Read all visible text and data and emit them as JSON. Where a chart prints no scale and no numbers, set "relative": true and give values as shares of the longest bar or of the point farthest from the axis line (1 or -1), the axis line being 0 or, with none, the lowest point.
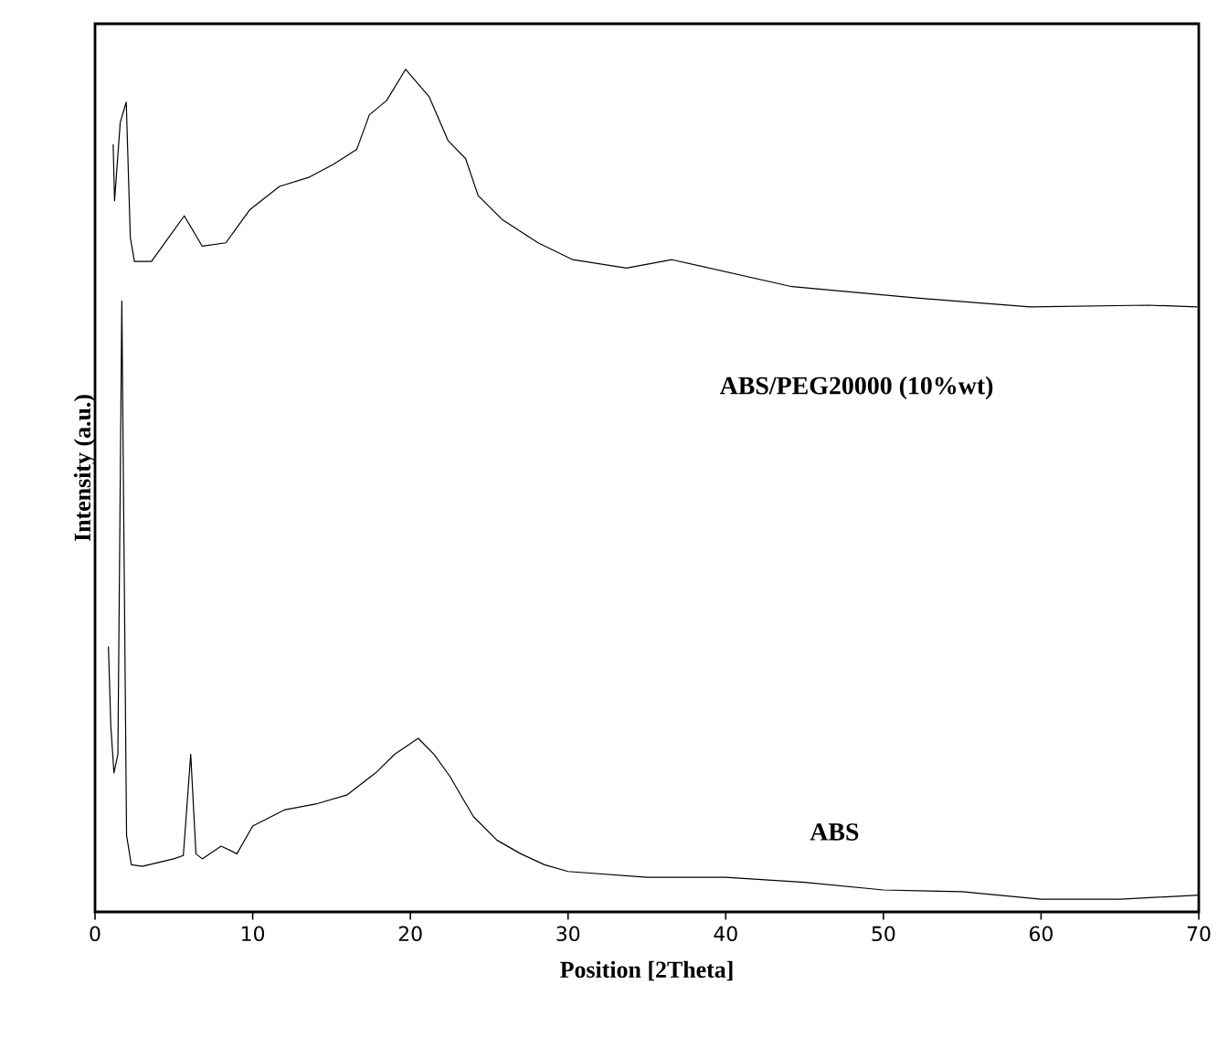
{
  "chart_data": {
    "type": "line",
    "relative": true,
    "xlabel": "Position [2Theta]",
    "ylabel": "Intensity (a.u.)",
    "xlim": [
      0,
      70
    ],
    "xticks": [
      0,
      10,
      20,
      30,
      40,
      50,
      60,
      70
    ],
    "series": [
      {
        "name": "ABS/PEG20000 (10%wt)",
        "color": "#000000",
        "x": [
          1.15,
          1.24,
          1.6,
          1.98,
          2.24,
          2.5,
          3.58,
          5.66,
          6.8,
          8.3,
          9.8,
          11.7,
          13.6,
          15.1,
          16.6,
          17.4,
          18.5,
          19.7,
          21.2,
          22.4,
          23.5,
          24.3,
          25.8,
          28.1,
          30.3,
          33.7,
          36.6,
          44.2,
          51.8,
          59.3,
          66.8,
          69.9
        ],
        "values": [
          0.911,
          0.844,
          0.937,
          0.961,
          0.8,
          0.772,
          0.772,
          0.826,
          0.79,
          0.794,
          0.833,
          0.861,
          0.872,
          0.887,
          0.905,
          0.946,
          0.963,
          1.0,
          0.967,
          0.915,
          0.894,
          0.85,
          0.822,
          0.794,
          0.774,
          0.764,
          0.774,
          0.742,
          0.729,
          0.718,
          0.72,
          0.718
        ]
      },
      {
        "name": "ABS",
        "color": "#000000",
        "x": [
          0.85,
          1.0,
          1.2,
          1.45,
          1.7,
          2.0,
          2.3,
          3,
          5,
          5.6,
          6.07,
          6.4,
          6.8,
          8,
          9,
          10,
          12,
          14,
          16,
          17.8,
          19,
          20.5,
          21.5,
          22.5,
          24,
          25.5,
          27,
          28.5,
          30,
          35,
          40,
          45,
          50,
          55,
          60,
          65,
          70
        ],
        "values": [
          0.315,
          0.221,
          0.165,
          0.187,
          0.725,
          0.091,
          0.056,
          0.054,
          0.063,
          0.067,
          0.187,
          0.069,
          0.063,
          0.078,
          0.069,
          0.102,
          0.121,
          0.128,
          0.139,
          0.165,
          0.187,
          0.206,
          0.187,
          0.161,
          0.113,
          0.085,
          0.069,
          0.056,
          0.048,
          0.041,
          0.041,
          0.035,
          0.026,
          0.024,
          0.015,
          0.015,
          0.02
        ]
      }
    ]
  }
}
